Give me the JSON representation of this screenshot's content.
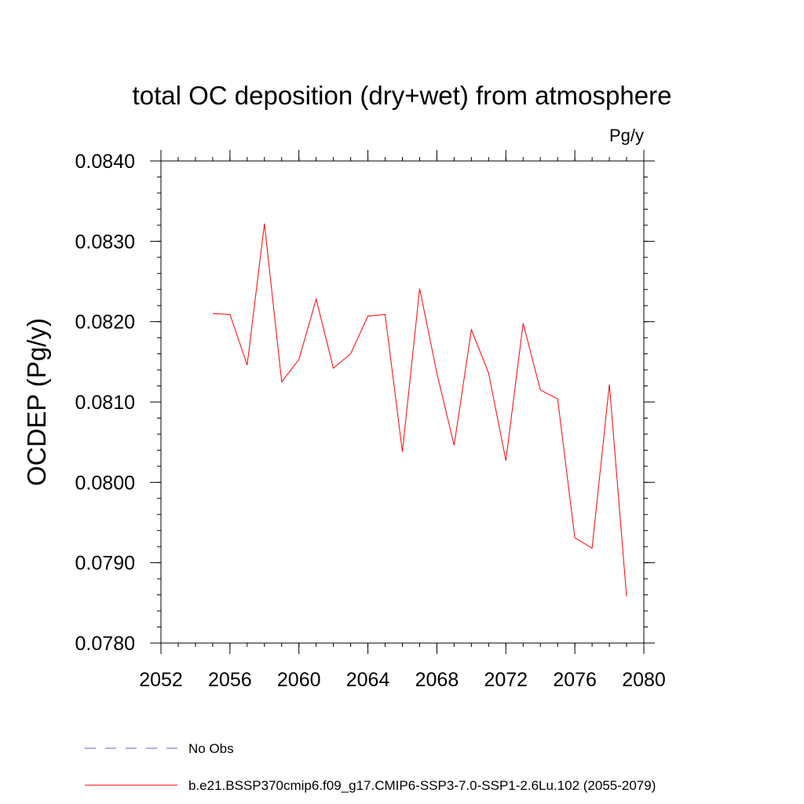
{
  "chart_data": {
    "type": "line",
    "title": "total OC deposition (dry+wet) from atmosphere",
    "units_label": "Pg/y",
    "ylabel": "OCDEP  (Pg/y)",
    "xlabel": "",
    "xlim": [
      2052,
      2080
    ],
    "ylim": [
      0.078,
      0.084
    ],
    "x_ticks": [
      2052,
      2056,
      2060,
      2064,
      2068,
      2072,
      2076,
      2080
    ],
    "x_tick_labels": [
      "2052",
      "2056",
      "2060",
      "2064",
      "2068",
      "2072",
      "2076",
      "2080"
    ],
    "y_ticks": [
      0.078,
      0.079,
      0.08,
      0.081,
      0.082,
      0.083,
      0.084
    ],
    "y_tick_labels": [
      "0.0780",
      "0.0790",
      "0.0800",
      "0.0810",
      "0.0820",
      "0.0830",
      "0.0840"
    ],
    "grid": false,
    "legend_position": "bottom",
    "series": [
      {
        "name": "b.e21.BSSP370cmip6.f09_g17.CMIP6-SSP3-7.0-SSP1-2.6Lu.102 (2055-2079)",
        "color": "#ff0000",
        "style": "solid",
        "x": [
          2055,
          2056,
          2057,
          2058,
          2059,
          2060,
          2061,
          2062,
          2063,
          2064,
          2065,
          2066,
          2067,
          2068,
          2069,
          2070,
          2071,
          2072,
          2073,
          2074,
          2075,
          2076,
          2077,
          2078,
          2079
        ],
        "y": [
          0.0821,
          0.08209,
          0.08146,
          0.08322,
          0.08125,
          0.08153,
          0.08228,
          0.08142,
          0.0816,
          0.08207,
          0.08209,
          0.08038,
          0.08241,
          0.08136,
          0.08046,
          0.0819,
          0.08136,
          0.08027,
          0.08198,
          0.08115,
          0.08104,
          0.07931,
          0.07918,
          0.08122,
          0.07858
        ]
      }
    ],
    "legend": [
      {
        "label": "No Obs",
        "color": "#6a5acd",
        "style": "dashed"
      },
      {
        "label": "b.e21.BSSP370cmip6.f09_g17.CMIP6-SSP3-7.0-SSP1-2.6Lu.102 (2055-2079)",
        "color": "#ff0000",
        "style": "solid"
      }
    ]
  }
}
